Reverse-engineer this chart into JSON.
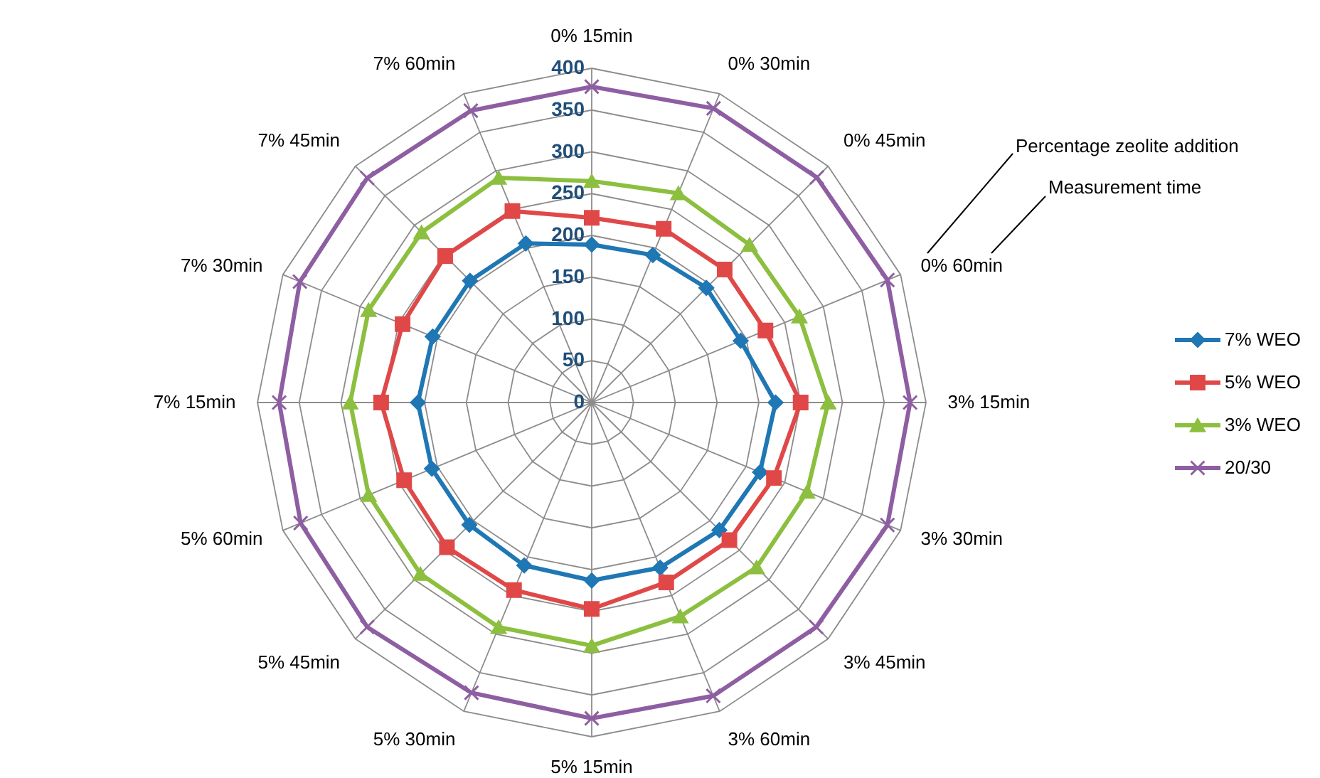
{
  "chart_data": {
    "type": "radar",
    "categories": [
      "0% 15min",
      "0% 30min",
      "0% 45min",
      "0% 60min",
      "3% 15min",
      "3% 30min",
      "3% 45min",
      "3% 60min",
      "5% 15min",
      "5% 30min",
      "5% 45min",
      "5% 60min",
      "7% 15min",
      "7% 30min",
      "7% 45min",
      "7% 60min"
    ],
    "series": [
      {
        "name": "7% WEO",
        "color": "#1f77b4",
        "marker": "diamond",
        "values": [
          189,
          191,
          194,
          193,
          220,
          218,
          216,
          214,
          213,
          211,
          207,
          207,
          208,
          206,
          206,
          206
        ]
      },
      {
        "name": "5% WEO",
        "color": "#e04848",
        "marker": "square",
        "values": [
          221,
          225,
          225,
          225,
          250,
          236,
          233,
          233,
          247,
          243,
          245,
          243,
          252,
          245,
          248,
          248
        ]
      },
      {
        "name": "3% WEO",
        "color": "#8cbf3f",
        "marker": "triangle",
        "values": [
          265,
          271,
          267,
          269,
          283,
          279,
          279,
          277,
          291,
          291,
          290,
          289,
          289,
          289,
          288,
          291
        ]
      },
      {
        "name": "20/30",
        "color": "#8e5ea2",
        "marker": "cross",
        "values": [
          378,
          381,
          381,
          383,
          381,
          383,
          380,
          380,
          378,
          376,
          380,
          377,
          374,
          378,
          380,
          378
        ]
      }
    ],
    "ylim": [
      0,
      400
    ],
    "yticks": [
      0,
      50,
      100,
      150,
      200,
      250,
      300,
      350,
      400
    ],
    "grid": true,
    "legend": "right",
    "annotations": [
      "Percentage zeolite addition",
      "Measurement time"
    ]
  }
}
